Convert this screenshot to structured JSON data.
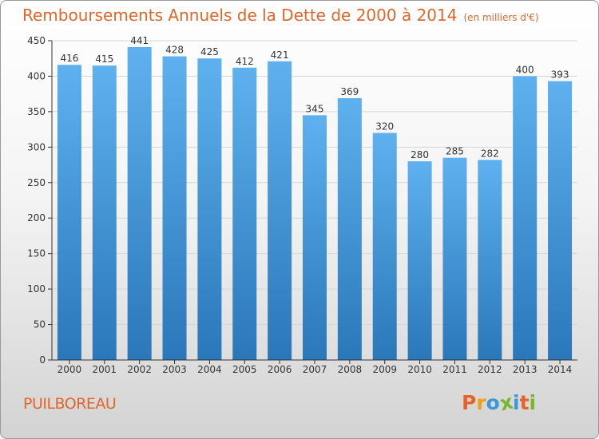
{
  "chart_data": {
    "type": "bar",
    "title": "Remboursements Annuels de la Dette de 2000 à 2014",
    "subtitle": "(en milliers d'€)",
    "categories": [
      "2000",
      "2001",
      "2002",
      "2003",
      "2004",
      "2005",
      "2006",
      "2007",
      "2008",
      "2009",
      "2010",
      "2011",
      "2012",
      "2013",
      "2014"
    ],
    "values": [
      416,
      415,
      441,
      428,
      425,
      412,
      421,
      345,
      369,
      320,
      280,
      285,
      282,
      400,
      393
    ],
    "ylim": [
      0,
      450
    ],
    "yticks": [
      0,
      50,
      100,
      150,
      200,
      250,
      300,
      350,
      400,
      450
    ],
    "grid": true,
    "bar_color": "#3d93db"
  },
  "footer": {
    "commune": "PUILBOREAU",
    "logo_text": "Proxiti",
    "logo_colors": [
      "#e8632b",
      "#f0a01e",
      "#3a9ad9",
      "#76b82a",
      "#3a9ad9",
      "#e8632b",
      "#76b82a"
    ]
  }
}
